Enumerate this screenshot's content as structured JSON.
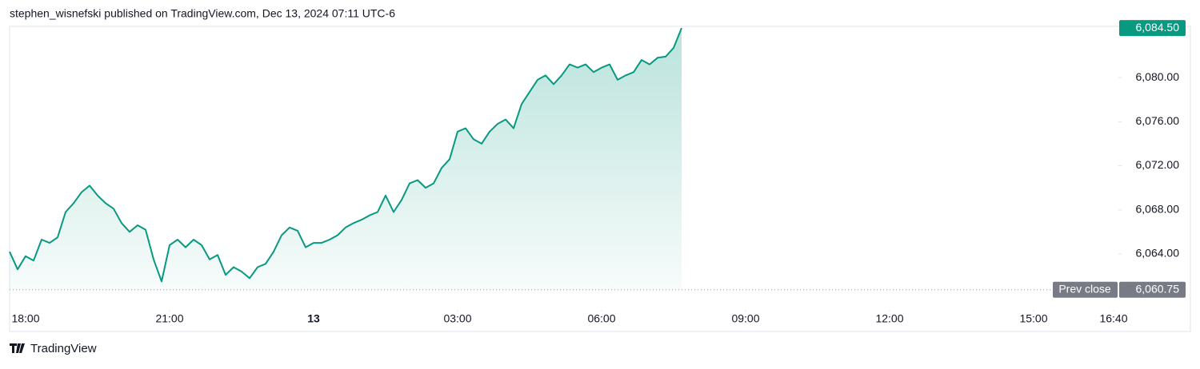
{
  "header": {
    "text": "stephen_wisnefski published on TradingView.com, Dec 13, 2024 07:11 UTC-6"
  },
  "footer": {
    "brand": "TradingView"
  },
  "chart_data": {
    "type": "area",
    "color": "#089981",
    "x": [
      -20,
      -10,
      0,
      10,
      20,
      30,
      40,
      50,
      60,
      70,
      80,
      90,
      100,
      110,
      120,
      130,
      140,
      150,
      160,
      170,
      180,
      190,
      200,
      210,
      220,
      230,
      240,
      250,
      260,
      270,
      280,
      290,
      300,
      310,
      320,
      330,
      340,
      350,
      360,
      370,
      380,
      390,
      400,
      410,
      420,
      430,
      440,
      450,
      460,
      470,
      480,
      490,
      500,
      510,
      520,
      530,
      540,
      550,
      560,
      570,
      580,
      590,
      600,
      610,
      620,
      630,
      640,
      650,
      660,
      670,
      680,
      690,
      700,
      710,
      720,
      730,
      740,
      750,
      760,
      770,
      780,
      790,
      800,
      810,
      820
    ],
    "values": [
      6064.2,
      6062.6,
      6063.8,
      6063.4,
      6065.3,
      6065,
      6065.5,
      6067.8,
      6068.6,
      6069.6,
      6070.2,
      6069.3,
      6068.6,
      6068.1,
      6066.8,
      6066,
      6066.6,
      6066.2,
      6063.5,
      6061.5,
      6064.8,
      6065.3,
      6064.6,
      6065.3,
      6064.8,
      6063.5,
      6063.9,
      6062.1,
      6062.8,
      6062.4,
      6061.8,
      6062.8,
      6063.1,
      6064.2,
      6065.7,
      6066.4,
      6066.1,
      6064.6,
      6065,
      6065,
      6065.3,
      6065.7,
      6066.4,
      6066.8,
      6067.1,
      6067.5,
      6067.8,
      6069.3,
      6067.8,
      6068.9,
      6070.4,
      6070.7,
      6070,
      6070.4,
      6071.8,
      6072.6,
      6075.1,
      6075.4,
      6074.4,
      6074,
      6075.1,
      6075.8,
      6076.2,
      6075.4,
      6077.6,
      6078.7,
      6079.8,
      6080.2,
      6079.4,
      6080.2,
      6081.2,
      6080.9,
      6081.2,
      6080.5,
      6080.9,
      6081.2,
      6079.8,
      6080.2,
      6080.5,
      6081.6,
      6081.2,
      6081.8,
      6081.9,
      6082.7,
      6084.5
    ],
    "xlim": [
      -20,
      1365
    ],
    "ylim": [
      6059.5,
      6084.65
    ],
    "xticks": [
      {
        "value": 0,
        "label": "18:00"
      },
      {
        "value": 180,
        "label": "21:00"
      },
      {
        "value": 360,
        "label": "13"
      },
      {
        "value": 540,
        "label": "03:00"
      },
      {
        "value": 720,
        "label": "06:00"
      },
      {
        "value": 900,
        "label": "09:00"
      },
      {
        "value": 1080,
        "label": "12:00"
      },
      {
        "value": 1260,
        "label": "15:00"
      },
      {
        "value": 1360,
        "label": "16:40"
      }
    ],
    "yticks": [
      {
        "value": 6064,
        "label": "6,064.00"
      },
      {
        "value": 6068,
        "label": "6,068.00"
      },
      {
        "value": 6072,
        "label": "6,072.00"
      },
      {
        "value": 6076,
        "label": "6,076.00"
      },
      {
        "value": 6080,
        "label": "6,080.00"
      }
    ],
    "last_price": {
      "value": 6084.5,
      "label": "6,084.50"
    },
    "prev_close": {
      "name": "Prev close",
      "value": 6060.75,
      "label": "6,060.75"
    }
  }
}
